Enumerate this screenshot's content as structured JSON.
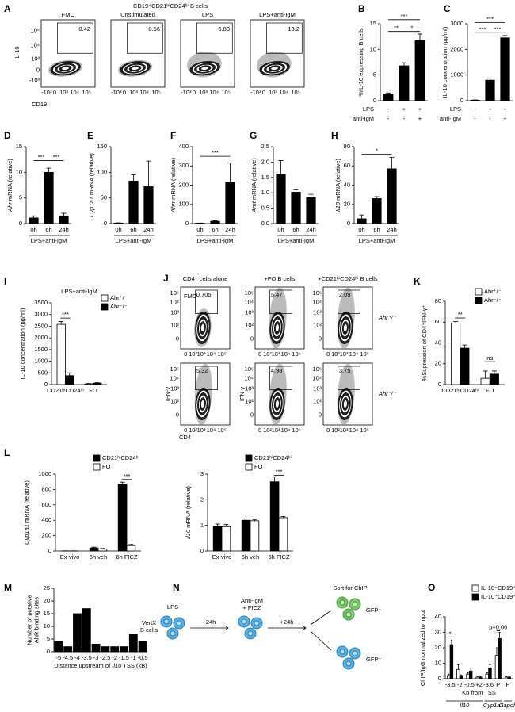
{
  "chart_data": [
    {
      "panel": "B",
      "type": "bar",
      "ylabel": "%IL-10 expressing B cells",
      "categories": [
        null,
        null,
        null
      ],
      "values": [
        1.2,
        6.8,
        11.7
      ],
      "errors": [
        0.3,
        0.6,
        1.3
      ],
      "color": "#000000",
      "ylim": [
        0,
        15
      ],
      "yticks": [
        0,
        5,
        10,
        15
      ],
      "conditions": [
        {
          "label": "LPS",
          "signs": [
            "-",
            "+",
            "+"
          ]
        },
        {
          "label": "anti-IgM",
          "signs": [
            "-",
            "-",
            "+"
          ]
        }
      ],
      "annotations": [
        "**",
        "*",
        "***"
      ]
    },
    {
      "panel": "C",
      "type": "bar",
      "ylabel": "IL-10 concentration (pg/ml)",
      "categories": [
        null,
        null,
        null
      ],
      "values": [
        20,
        800,
        2450
      ],
      "errors": [
        10,
        80,
        90
      ],
      "color": "#000000",
      "ylim": [
        0,
        3000
      ],
      "yticks": [
        0,
        1000,
        2000,
        3000
      ],
      "conditions": [
        {
          "label": "LPS",
          "signs": [
            "-",
            "+",
            "+"
          ]
        },
        {
          "label": "anti-IgM",
          "signs": [
            "-",
            "-",
            "+"
          ]
        }
      ],
      "annotations": [
        "***",
        "***",
        "***"
      ]
    },
    {
      "panel": "D",
      "type": "bar",
      "ylabel": [
        {
          "text": "Ahr",
          "italic": true
        },
        {
          "text": " mRNA (relative)"
        }
      ],
      "categories": [
        "0h",
        "6h",
        "24h"
      ],
      "values": [
        1.1,
        10,
        1.5
      ],
      "errors": [
        0.4,
        0.8,
        0.5
      ],
      "color": "#000000",
      "ylim": [
        0,
        15
      ],
      "yticks": [
        0,
        5,
        10,
        15
      ],
      "xlabel": "LPS+anti-IgM",
      "annotations": [
        "***",
        "***"
      ]
    },
    {
      "panel": "E",
      "type": "bar",
      "ylabel": [
        {
          "text": "Cyp1a1",
          "italic": true
        },
        {
          "text": " mRNA (relative)"
        }
      ],
      "categories": [
        "0h",
        "6h",
        "24h"
      ],
      "values": [
        1,
        83,
        72
      ],
      "errors": [
        0.5,
        12,
        50
      ],
      "color": "#000000",
      "ylim": [
        0,
        150
      ],
      "yticks": [
        0,
        50,
        100,
        150
      ],
      "xlabel": "LPS+anti-IgM"
    },
    {
      "panel": "F",
      "type": "bar",
      "ylabel": [
        {
          "text": "Ahrr",
          "italic": true
        },
        {
          "text": " mRNA (relative)"
        }
      ],
      "categories": [
        "0h",
        "6h",
        "24h"
      ],
      "values": [
        2,
        12,
        215
      ],
      "errors": [
        1,
        3,
        100
      ],
      "color": "#000000",
      "ylim": [
        0,
        400
      ],
      "yticks": [
        0,
        100,
        200,
        300,
        400
      ],
      "xlabel": "LPS+anti-IgM",
      "annotations": [
        "***"
      ]
    },
    {
      "panel": "G",
      "type": "bar",
      "ylabel": [
        {
          "text": "Arnt",
          "italic": true
        },
        {
          "text": " mRNA (relative)"
        }
      ],
      "categories": [
        "0h",
        "6h",
        "24h"
      ],
      "values": [
        1.6,
        1.02,
        0.85
      ],
      "errors": [
        0.45,
        0.08,
        0.1
      ],
      "color": "#000000",
      "ylim": [
        0,
        2.5
      ],
      "yticks": [
        {
          "value": 0,
          "label": "0.0"
        },
        0.5,
        {
          "value": 1,
          "label": "1.0"
        },
        1.5,
        {
          "value": 2,
          "label": "2.0"
        },
        2.5
      ],
      "xlabel": "LPS+anti-IgM"
    },
    {
      "panel": "H",
      "type": "bar",
      "ylabel": [
        {
          "text": "Il10",
          "italic": true
        },
        {
          "text": " mRNA (relative)"
        }
      ],
      "categories": [
        "0h",
        "6h",
        "24h"
      ],
      "values": [
        5,
        26,
        57
      ],
      "errors": [
        4,
        2,
        12
      ],
      "color": "#000000",
      "ylim": [
        0,
        80
      ],
      "yticks": [
        0,
        20,
        40,
        60,
        80
      ],
      "xlabel": "LPS+anti-IgM",
      "annotations": [
        "*"
      ]
    },
    {
      "panel": "I",
      "type": "bar",
      "title": "LPS+anti-IgM",
      "ylabel": "IL-10 concentration (pg/ml)",
      "categories": [
        "CD21ʰⁱCD24ʰⁱ",
        "FO"
      ],
      "series": [
        {
          "name": "Ahr⁺/⁻",
          "color": "#ffffff",
          "values": [
            2580,
            30
          ],
          "errors": [
            120,
            15
          ]
        },
        {
          "name": "Ahr⁻/⁻",
          "color": "#000000",
          "values": [
            380,
            60
          ],
          "errors": [
            120,
            20
          ]
        }
      ],
      "ylim": [
        0,
        3500
      ],
      "yticks": [
        0,
        500,
        1000,
        1500,
        2000,
        2500,
        3000,
        3500
      ],
      "annotations": [
        "***"
      ]
    },
    {
      "panel": "K",
      "type": "bar",
      "ylabel": "%Supression of CD4⁺IFN-γ⁺",
      "categories": [
        "CD21ʰⁱCD24ʰⁱ",
        "FO"
      ],
      "series": [
        {
          "name": "Ahr⁺/⁻",
          "color": "#ffffff",
          "values": [
            59,
            6
          ],
          "errors": [
            1.5,
            7
          ]
        },
        {
          "name": "Ahr⁻/⁻",
          "color": "#000000",
          "values": [
            35,
            10
          ],
          "errors": [
            3,
            3
          ]
        }
      ],
      "ylim": [
        0,
        80
      ],
      "yticks": [
        0,
        20,
        40,
        60,
        80
      ],
      "annotations": [
        "**",
        "ns"
      ]
    },
    {
      "panel": "L",
      "type": "bar",
      "ylabel": [
        {
          "text": "Cyp1a1",
          "italic": true
        },
        {
          "text": " mRNA (relative)"
        }
      ],
      "categories": [
        "Ex-vivo",
        "6h veh",
        "6h FICZ"
      ],
      "series": [
        {
          "name": "CD21ʰⁱCD24ʰⁱ",
          "color": "#000000",
          "values": [
            1,
            40,
            870
          ],
          "errors": [
            1,
            10,
            25
          ]
        },
        {
          "name": "FO",
          "color": "#ffffff",
          "values": [
            1,
            25,
            70
          ],
          "errors": [
            1,
            8,
            15
          ]
        }
      ],
      "ylim": [
        0,
        1000
      ],
      "yticks": [
        0,
        200,
        400,
        600,
        800,
        1000
      ],
      "annotations": [
        "***"
      ]
    },
    {
      "type": "bar",
      "ylabel": [
        {
          "text": "Il10",
          "italic": true
        },
        {
          "text": " mRNA (relative)"
        }
      ],
      "categories": [
        "Ex-vivo",
        "6h veh",
        "6h FICZ"
      ],
      "series": [
        {
          "name": "CD21ʰⁱCD24ʰⁱ",
          "color": "#000000",
          "values": [
            0.95,
            1.2,
            2.7
          ],
          "errors": [
            0.1,
            0.05,
            0.2
          ]
        },
        {
          "name": "FO",
          "color": "#ffffff",
          "values": [
            0.95,
            1.18,
            1.3
          ],
          "errors": [
            0.08,
            0.05,
            0.05
          ]
        }
      ],
      "ylim": [
        0,
        3
      ],
      "yticks": [
        0,
        1,
        2,
        3
      ],
      "annotations": [
        "***"
      ]
    },
    {
      "panel": "M",
      "type": "bar",
      "ylabel": [
        "Number of putative",
        "AhR binding sites"
      ],
      "categories": [
        "-5",
        "-4.5",
        "-4",
        "-3.5",
        "-3",
        "-2.5",
        "-2",
        "-1.5",
        "-1",
        "-0.5"
      ],
      "values": [
        4,
        2,
        15,
        17,
        3,
        2,
        2,
        2,
        7,
        4
      ],
      "color": "#000000",
      "ylim": [
        0,
        25
      ],
      "yticks": [
        0,
        5,
        10,
        15,
        20,
        25
      ],
      "xlabel": [
        {
          "text": "Distance upstream of "
        },
        {
          "text": "Il10",
          "italic": true
        },
        {
          "text": " TSS (kB)"
        }
      ]
    },
    {
      "panel": "O",
      "type": "bar",
      "ylabel": "ChIP/IgG normalized to input",
      "categories": [
        "-3.5",
        "-2",
        "-0.5",
        "+2",
        "-3.6",
        "P",
        "P"
      ],
      "xlabel": "Kb from TSS",
      "groups": [
        {
          "text": "Il10",
          "italic": true
        },
        {
          "text": "Cyp1a1",
          "italic": true
        },
        {
          "text": "Gapdh",
          "italic": true
        }
      ],
      "series": [
        {
          "name": "IL-10⁻CD19⁺",
          "color": "#ffffff",
          "values": [
            2,
            6,
            3,
            1,
            3,
            15,
            1
          ],
          "errors": [
            1,
            3,
            1,
            0.5,
            1,
            5,
            0.3
          ]
        },
        {
          "name": "IL-10⁺CD19⁺",
          "color": "#000000",
          "values": [
            22,
            2,
            5,
            1,
            7,
            26,
            1
          ],
          "errors": [
            3,
            0.5,
            2,
            0.5,
            2,
            4,
            0.3
          ]
        }
      ],
      "ylim": [
        0,
        40
      ],
      "yticks": [
        0,
        10,
        20,
        30,
        40
      ],
      "annotations": [
        "*",
        "p=0.06"
      ]
    }
  ],
  "panel_A": {
    "panel": "A",
    "title": "CD19⁺CD21ʰⁱCD24ʰⁱ B cells",
    "ylabel": "IL-10",
    "xlabel": "CD19",
    "ticks": [
      "-10³",
      "0",
      "10³",
      "10⁴",
      "10⁵"
    ],
    "plots": [
      {
        "label": "FMO",
        "gate": 0.42
      },
      {
        "label": "Unstimulated",
        "gate": 0.56
      },
      {
        "label": "LPS",
        "gate": 6.83
      },
      {
        "label": "LPS+anti-IgM",
        "gate": 13.2
      }
    ]
  },
  "panel_J": {
    "panel": "J",
    "xlabel": "CD4",
    "ylabel": "IFN-γ",
    "xticks": [
      "0",
      "10²",
      "10³",
      "10⁴",
      "10⁵"
    ],
    "yticks": [
      "10⁵",
      "10⁴",
      "10³",
      "10²",
      "0"
    ],
    "fmo_label": "FMO",
    "columns": [
      "CD4⁺ cells alone",
      "+FO B cells",
      "+CD21ʰⁱCD24ʰⁱ B cells"
    ],
    "rows": [
      {
        "label": "Ahr⁺/⁻",
        "gates": [
          0.705,
          5.47,
          2.09
        ]
      },
      {
        "label": "Ahr⁻/⁻",
        "gates": [
          5.32,
          4.98,
          3.75
        ]
      }
    ]
  },
  "panel_N": {
    "panel": "N",
    "step1": "LPS",
    "cells": [
      "VertX",
      "B cells"
    ],
    "time1": "+24h",
    "step2": [
      "Anti-IgM",
      "+ FICZ"
    ],
    "time2": "+24h",
    "sort": "Sort for ChIP",
    "pos": "GFP⁺",
    "neg": "GFP⁻"
  }
}
